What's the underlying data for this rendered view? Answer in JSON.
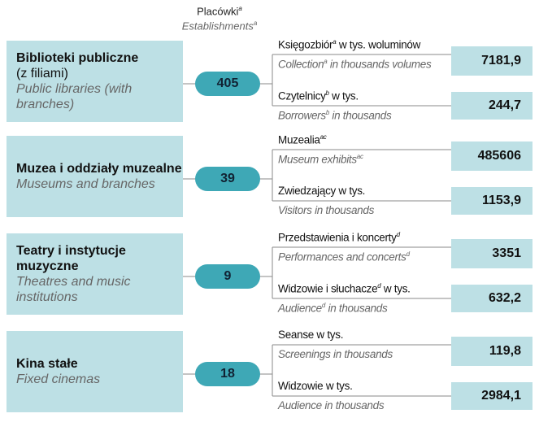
{
  "header": {
    "pl": "Placówki",
    "pl_sup": "a",
    "en": "Establishments",
    "en_sup": "a"
  },
  "groups": [
    {
      "name_bold": "Biblioteki publiczne",
      "name_regular": "(z filiami)",
      "name_en": "Public libraries (with branches)",
      "count": "405",
      "metrics": [
        {
          "pl": "Księgozbiór",
          "pl_sup": "a",
          "pl_rest": " w tys. woluminów",
          "en": "Collection",
          "en_sup": "a",
          "en_rest": " in thousands volumes",
          "value": "7181,9"
        },
        {
          "pl": "Czytelnicy",
          "pl_sup": "b",
          "pl_rest": " w tys.",
          "en": "Borrowers",
          "en_sup": "b",
          "en_rest": " in thousands",
          "value": "244,7"
        }
      ]
    },
    {
      "name_bold": "Muzea i oddziały muzealne",
      "name_en": "Museums and branches",
      "count": "39",
      "metrics": [
        {
          "pl": "Muzealia",
          "pl_sup": "ac",
          "en": "Museum exhibits",
          "en_sup": "ac",
          "value": "485606"
        },
        {
          "pl": "Zwiedzający w tys.",
          "en": "Visitors in thousands",
          "value": "1153,9"
        }
      ]
    },
    {
      "name_bold": "Teatry i instytucje muzyczne",
      "name_en": "Theatres and music institutions",
      "count": "9",
      "metrics": [
        {
          "pl": "Przedstawienia i koncerty",
          "pl_sup": "d",
          "en": "Performances and concerts",
          "en_sup": "d",
          "value": "3351"
        },
        {
          "pl": "Widzowie i słuchacze",
          "pl_sup": "d",
          "pl_rest": " w tys.",
          "en": "Audience",
          "en_sup": "d",
          "en_rest": " in thousands",
          "value": "632,2"
        }
      ]
    },
    {
      "name_bold": "Kina stałe",
      "name_en": "Fixed cinemas",
      "count": "18",
      "metrics": [
        {
          "pl": "Seanse w tys.",
          "en": "Screenings in thousands",
          "value": "119,8"
        },
        {
          "pl": "Widzowie w tys.",
          "en": "Audience in thousands",
          "value": "2984,1"
        }
      ]
    }
  ]
}
